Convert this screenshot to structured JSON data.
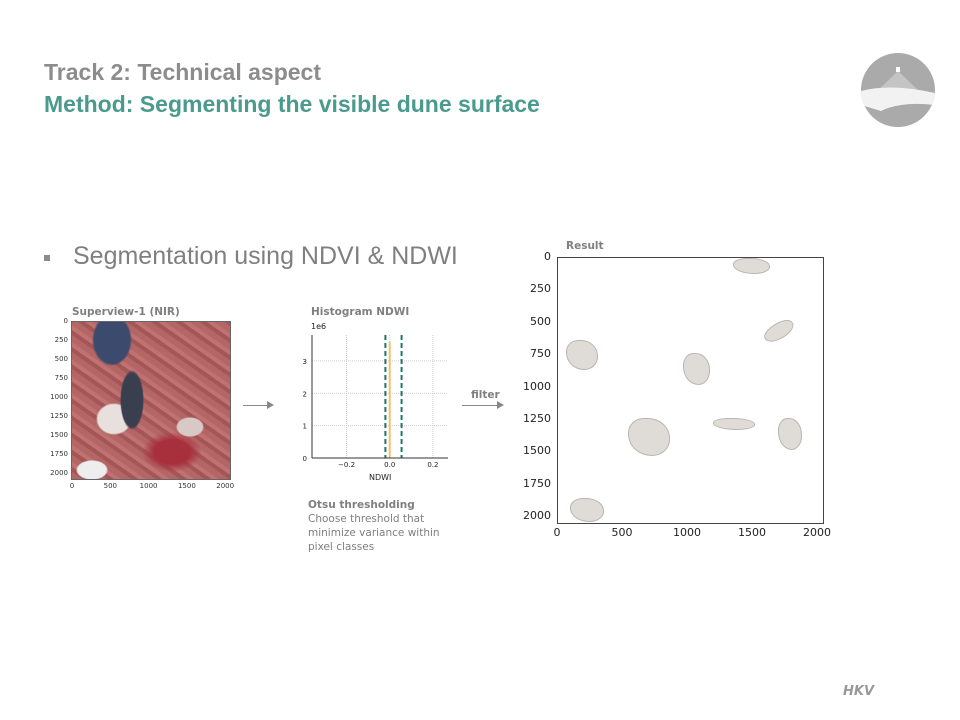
{
  "header": {
    "track": "Track 2: Technical aspect",
    "method": "Method: Segmenting the visible dune surface"
  },
  "bullet": "Segmentation using NDVI & NDWI",
  "satellite": {
    "title": "Superview-1 (NIR)",
    "yticks": [
      "0",
      "250",
      "500",
      "750",
      "1000",
      "1250",
      "1500",
      "1750",
      "2000"
    ],
    "xticks": [
      "0",
      "500",
      "1000",
      "1500",
      "2000"
    ]
  },
  "histogram": {
    "title": "Histogram NDWI",
    "multiplier": "1e6",
    "xlabel": "NDWI",
    "yticks": [
      "0",
      "1",
      "2",
      "3"
    ],
    "xticks": [
      "−0.2",
      "0.0",
      "0.2"
    ],
    "thresholds": [
      -0.02,
      0.055
    ],
    "peak": {
      "x": 0.0,
      "y": 3.6
    },
    "xlim": [
      -0.36,
      0.27
    ],
    "ylim": [
      0,
      3.8
    ],
    "threshold_color": "#1a7a62",
    "bar_color": "#f5c26b"
  },
  "otsu": {
    "title": "Otsu thresholding",
    "text": [
      "Choose threshold that",
      "minimize variance within",
      "pixel classes"
    ]
  },
  "filter_label": "filter",
  "result": {
    "title": "Result",
    "yticks": [
      "0",
      "250",
      "500",
      "750",
      "1000",
      "1250",
      "1500",
      "1750",
      "2000"
    ],
    "xticks": [
      "0",
      "500",
      "1000",
      "1500",
      "2000"
    ]
  },
  "footer": {
    "logo": "HKV"
  },
  "colors": {
    "title_gray": "#8c8c8c",
    "accent": "#4a9a8e"
  }
}
